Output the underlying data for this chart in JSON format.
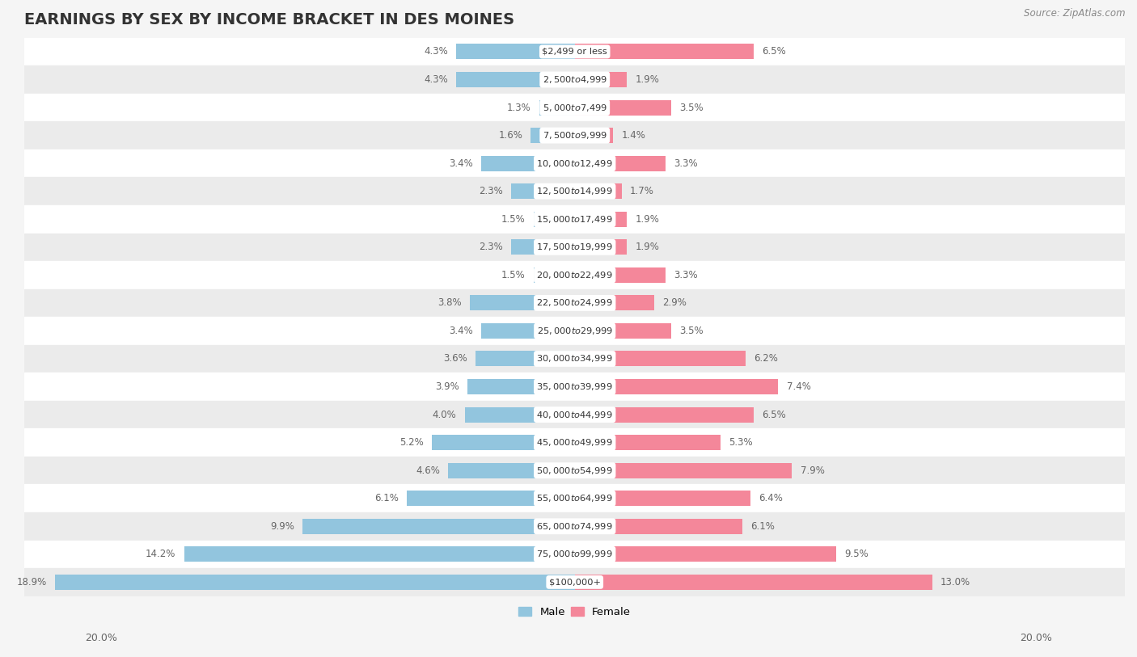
{
  "title": "EARNINGS BY SEX BY INCOME BRACKET IN DES MOINES",
  "source": "Source: ZipAtlas.com",
  "categories": [
    "$2,499 or less",
    "$2,500 to $4,999",
    "$5,000 to $7,499",
    "$7,500 to $9,999",
    "$10,000 to $12,499",
    "$12,500 to $14,999",
    "$15,000 to $17,499",
    "$17,500 to $19,999",
    "$20,000 to $22,499",
    "$22,500 to $24,999",
    "$25,000 to $29,999",
    "$30,000 to $34,999",
    "$35,000 to $39,999",
    "$40,000 to $44,999",
    "$45,000 to $49,999",
    "$50,000 to $54,999",
    "$55,000 to $64,999",
    "$65,000 to $74,999",
    "$75,000 to $99,999",
    "$100,000+"
  ],
  "male_values": [
    4.3,
    4.3,
    1.3,
    1.6,
    3.4,
    2.3,
    1.5,
    2.3,
    1.5,
    3.8,
    3.4,
    3.6,
    3.9,
    4.0,
    5.2,
    4.6,
    6.1,
    9.9,
    14.2,
    18.9
  ],
  "female_values": [
    6.5,
    1.9,
    3.5,
    1.4,
    3.3,
    1.7,
    1.9,
    1.9,
    3.3,
    2.9,
    3.5,
    6.2,
    7.4,
    6.5,
    5.3,
    7.9,
    6.4,
    6.1,
    9.5,
    13.0
  ],
  "male_color": "#92c5de",
  "female_color": "#f08080",
  "background_row_odd": "#f5f5f5",
  "background_row_even": "#ffffff",
  "xlim": 20.0,
  "legend_male": "Male",
  "legend_female": "Female",
  "title_fontsize": 14,
  "label_fontsize": 9,
  "bar_height": 0.55
}
